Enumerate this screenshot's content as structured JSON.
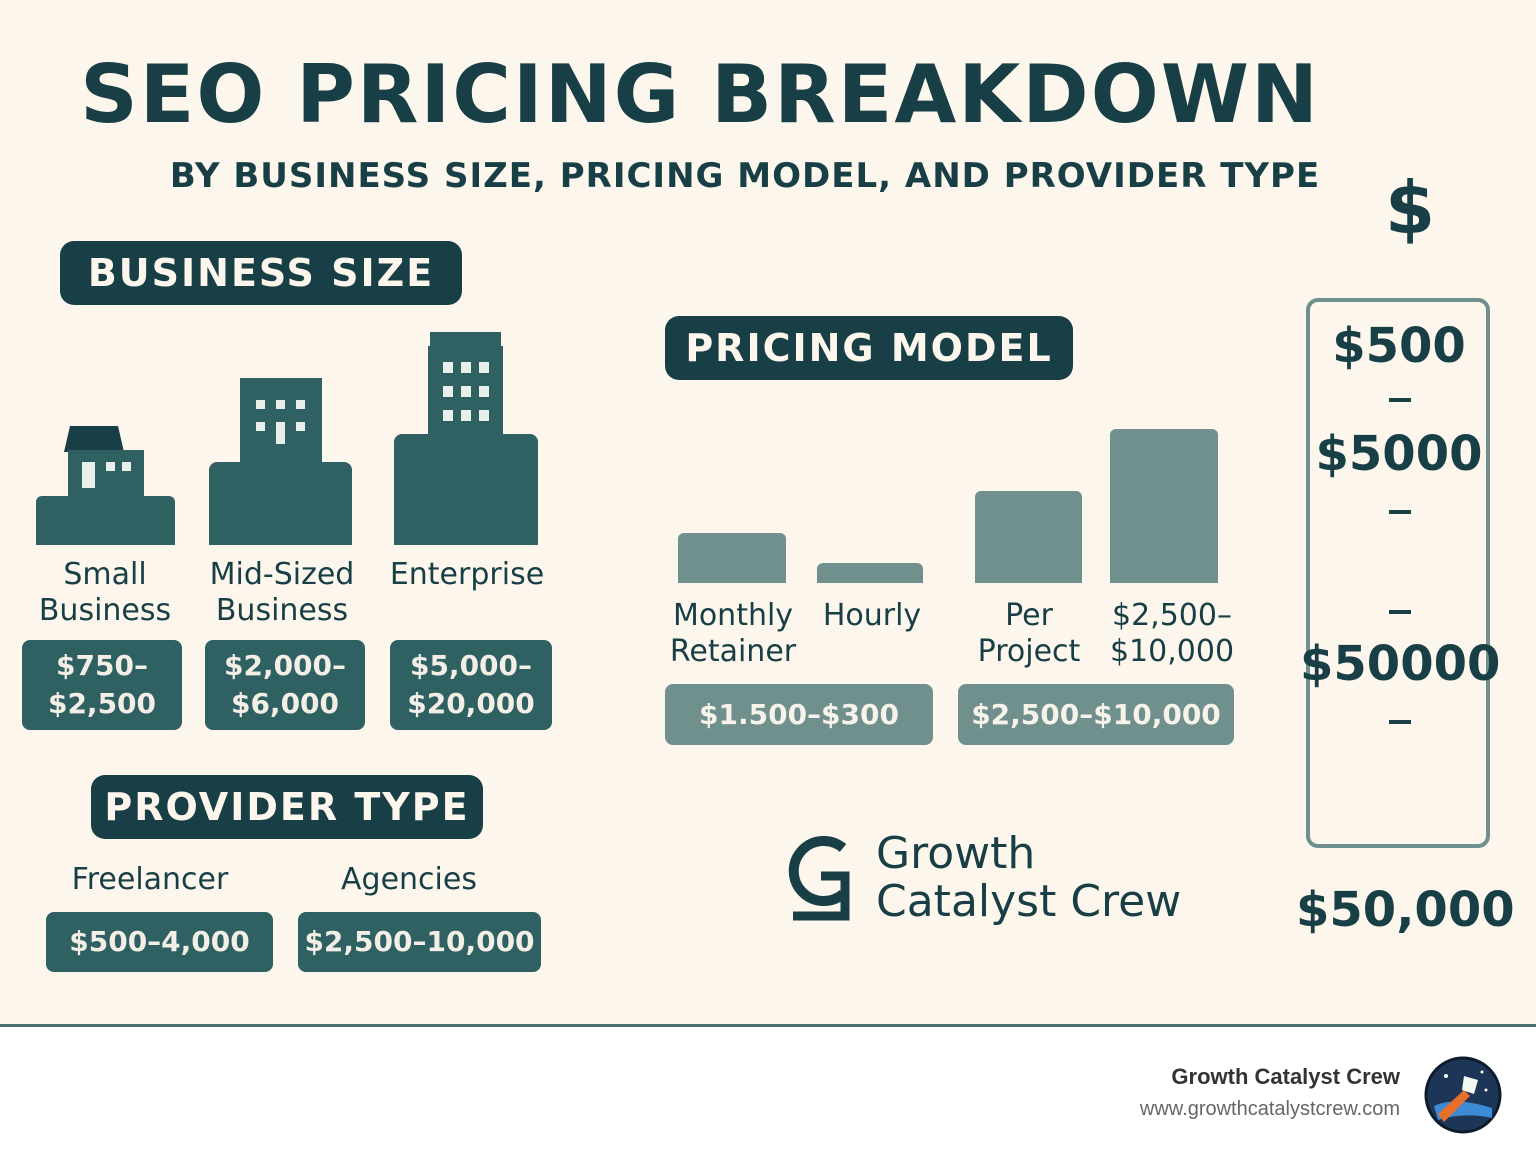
{
  "header": {
    "title": "SEO PRICING BREAKDOWN",
    "subtitle": "BY BUSINESS SIZE, PRICING MODEL, AND PROVIDER TYPE"
  },
  "business_size": {
    "heading": "BUSINESS SIZE",
    "items": [
      {
        "label_line1": "Small",
        "label_line2": "Business",
        "price_line1": "$750–",
        "price_line2": "$2,500"
      },
      {
        "label_line1": "Mid-Sized",
        "label_line2": "Business",
        "price_line1": "$2,000–",
        "price_line2": "$6,000"
      },
      {
        "label_line1": "Enterprise",
        "label_line2": "",
        "price_line1": "$5,000–",
        "price_line2": "$20,000"
      }
    ]
  },
  "pricing_model": {
    "heading": "PRICING MODEL",
    "items": [
      {
        "label_line1": "Monthly",
        "label_line2": "Retainer"
      },
      {
        "label_line1": "Hourly",
        "label_line2": ""
      },
      {
        "label_line1": "Per",
        "label_line2": "Project"
      },
      {
        "label_line1": "$2,500–",
        "label_line2": "$10,000"
      }
    ],
    "price_left": "$1.500–$300",
    "price_right": "$2,500–$10,000"
  },
  "provider_type": {
    "heading": "PROVIDER TYPE",
    "items": [
      {
        "label": "Freelancer",
        "price": "$500–4,000"
      },
      {
        "label": "Agencies",
        "price": "$2,500–10,000"
      }
    ]
  },
  "logo": {
    "line1": "Growth",
    "line2": "Catalyst Crew"
  },
  "scale": {
    "symbol": "$",
    "v1": "$500",
    "v2": "$5000",
    "v3": "$50000",
    "bottom": "$50,000"
  },
  "footer": {
    "brand": "Growth Catalyst Crew",
    "url": "www.growthcatalystcrew.com"
  },
  "colors": {
    "background": "#fdf6ec",
    "primary": "#173f45",
    "building": "#2f6163",
    "bar": "#6f908c"
  }
}
